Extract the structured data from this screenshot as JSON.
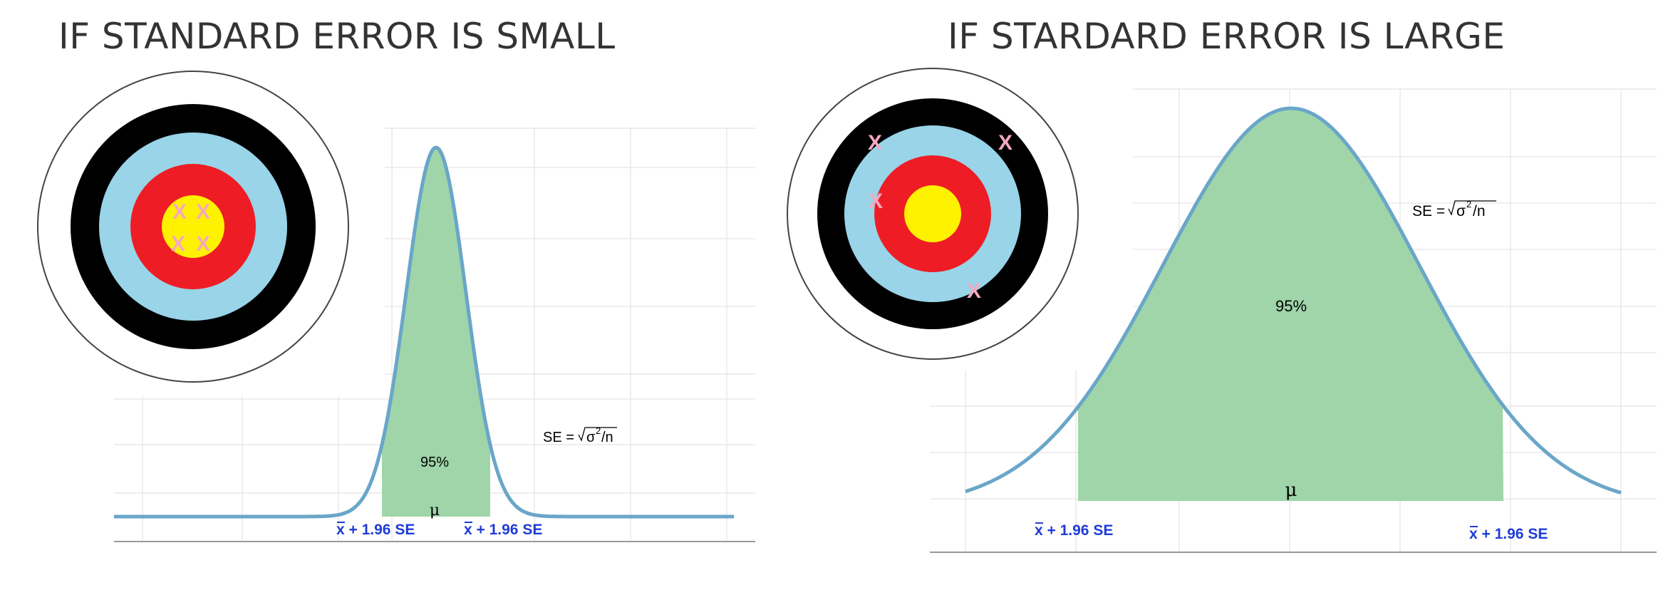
{
  "left_panel": {
    "title": "IF STANDARD ERROR IS SMALL",
    "se_label": "SE = ",
    "se_formula_sigma": "σ",
    "se_formula_exp": "2",
    "se_formula_n": " /n",
    "percent_label": "95%",
    "mu_label": "μ",
    "ci_left_label": "x + 1.96 SE",
    "ci_right_label": "x + 1.96 SE",
    "target_marks": [
      "X",
      "X",
      "X",
      "X"
    ]
  },
  "right_panel": {
    "title": "IF STARDARD ERROR IS LARGE",
    "se_label": "SE = ",
    "se_formula_sigma": "σ",
    "se_formula_exp": "2",
    "se_formula_n": " /n",
    "percent_label": "95%",
    "mu_label": "μ",
    "ci_left_label": "x + 1.96 SE",
    "ci_right_label": "x + 1.96 SE",
    "target_marks": [
      "X",
      "X",
      "X",
      "X"
    ]
  },
  "colors": {
    "curve": "#6aa6c8",
    "fill": "#9fd5a9",
    "target_outer": "#ffffff",
    "target_black": "#000000",
    "target_blue": "#99d4e8",
    "target_red": "#ee1d25",
    "target_yellow": "#fff200",
    "marks": "#f4a9c0",
    "labels_blue": "#1f3cd6",
    "grid": "#e6e6e6"
  }
}
